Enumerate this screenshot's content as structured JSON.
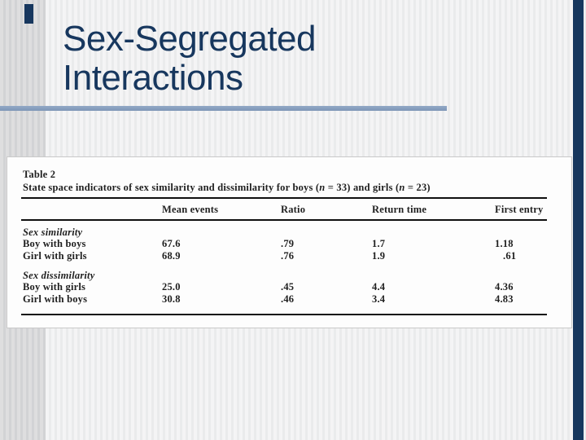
{
  "slide": {
    "title_line1": "Sex-Segregated",
    "title_line2": "Interactions",
    "accent_color": "#17375e",
    "underline_color": "#8ca3c2"
  },
  "table": {
    "label": "Table 2",
    "caption": {
      "p1": "State space indicators of sex similarity and dissimilarity for boys (",
      "i1": "n",
      "p2": " = 33) and girls (",
      "i2": "n",
      "p3": " = 23)"
    },
    "columns": [
      "Mean events",
      "Ratio",
      "Return time",
      "First entry"
    ],
    "sections": [
      {
        "header": "Sex similarity",
        "rows": [
          {
            "label": "Boy with boys",
            "values": [
              "67.6",
              ".79",
              "1.7",
              "1.18"
            ]
          },
          {
            "label": "Girl with girls",
            "values": [
              "68.9",
              ".76",
              "1.9",
              ".61"
            ]
          }
        ]
      },
      {
        "header": "Sex dissimilarity",
        "rows": [
          {
            "label": "Boy with girls",
            "values": [
              "25.0",
              ".45",
              "4.4",
              "4.36"
            ]
          },
          {
            "label": "Girl with boys",
            "values": [
              "30.8",
              ".46",
              "3.4",
              "4.83"
            ]
          }
        ]
      }
    ]
  }
}
